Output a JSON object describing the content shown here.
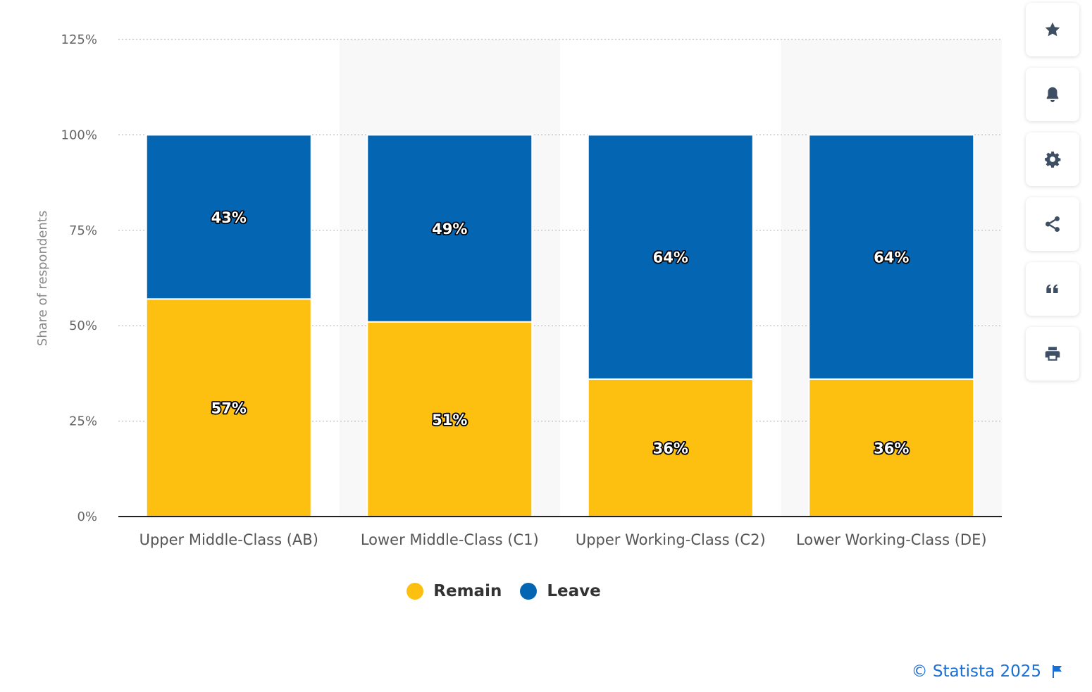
{
  "chart_data": {
    "type": "bar",
    "stacked": true,
    "categories": [
      "Upper Middle-Class (AB)",
      "Lower Middle-Class (C1)",
      "Upper Working-Class (C2)",
      "Lower Working-Class (DE)"
    ],
    "series": [
      {
        "name": "Remain",
        "color": "#fdc010",
        "values": [
          57,
          51,
          36,
          36
        ],
        "labels": [
          "57%",
          "51%",
          "36%",
          "36%"
        ]
      },
      {
        "name": "Leave",
        "color": "#0466b3",
        "values": [
          43,
          49,
          64,
          64
        ],
        "labels": [
          "43%",
          "49%",
          "64%",
          "64%"
        ]
      }
    ],
    "ylabel": "Share of respondents",
    "ylim": [
      0,
      125
    ],
    "y_ticks": [
      0,
      25,
      50,
      75,
      100,
      125
    ],
    "y_tick_labels": [
      "0%",
      "25%",
      "50%",
      "75%",
      "100%",
      "125%"
    ],
    "grid": true,
    "legend_position": "bottom-center",
    "alternate_band_color": "#f8f8f8"
  },
  "legend": [
    {
      "label": "Remain",
      "color": "#fdc010"
    },
    {
      "label": "Leave",
      "color": "#0466b3"
    }
  ],
  "toolbar": {
    "buttons": [
      {
        "name": "favorite-button",
        "icon": "star-icon"
      },
      {
        "name": "notification-button",
        "icon": "bell-icon"
      },
      {
        "name": "settings-button",
        "icon": "gear-icon"
      },
      {
        "name": "share-button",
        "icon": "share-icon"
      },
      {
        "name": "cite-button",
        "icon": "quote-icon"
      },
      {
        "name": "print-button",
        "icon": "printer-icon"
      }
    ],
    "icon_color": "#3f4f63"
  },
  "credit": {
    "text": "© Statista 2025",
    "icon": "flag-icon",
    "color": "#1a6fd6"
  }
}
